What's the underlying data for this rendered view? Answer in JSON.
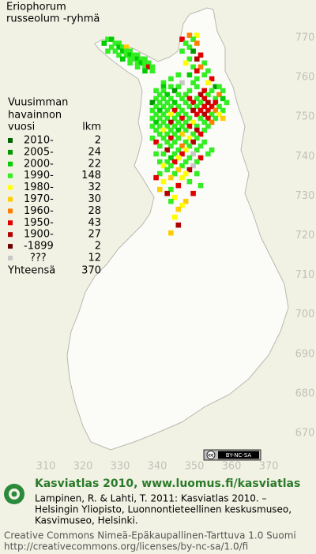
{
  "title_lines": [
    "Eriophorum",
    "russeolum -ryhmä"
  ],
  "legend_title_lines": [
    "Vuusimman",
    "havainnon",
    "vuosi"
  ],
  "legend_count_header": "lkm",
  "legend": [
    {
      "label": "2010-",
      "count": 2,
      "color": "#006400"
    },
    {
      "label": "2005-",
      "count": 24,
      "color": "#009a00"
    },
    {
      "label": "2000-",
      "count": 22,
      "color": "#00cc00"
    },
    {
      "label": "1990-",
      "count": 148,
      "color": "#33ee22"
    },
    {
      "label": "1980-",
      "count": 32,
      "color": "#ffff00"
    },
    {
      "label": "1970-",
      "count": 30,
      "color": "#ffcc00"
    },
    {
      "label": "1960-",
      "count": 28,
      "color": "#ff8000"
    },
    {
      "label": "1950-",
      "count": 43,
      "color": "#e00000"
    },
    {
      "label": "1900-",
      "count": 27,
      "color": "#b00000"
    },
    {
      "label": "-1899",
      "count": 2,
      "color": "#700000"
    },
    {
      "label": "???",
      "count": 12,
      "color": "#c8c8c8"
    }
  ],
  "total": {
    "label": "Yhteensä",
    "value": 370
  },
  "x_ticks": [
    310,
    320,
    330,
    340,
    350,
    360,
    370
  ],
  "y_ticks": [
    770,
    760,
    750,
    740,
    730,
    720,
    710,
    700,
    690,
    680,
    670
  ],
  "license_badge": {
    "symbol": "cc",
    "text": "BY-NC-SA"
  },
  "footer": {
    "heading": "Kasviatlas 2010, www.luomus.fi/kasviatlas",
    "citation_lines": [
      "Lampinen, R. & Lahti, T. 2011: Kasviatlas 2010. –",
      "Helsingin Yliopisto, Luonnontieteellinen keskusmuseo,",
      "Kasvimuseo, Helsinki."
    ],
    "license_lines": [
      "Creative Commons Nimeä-Epäkaupallinen-Tarttuva 1.0 Suomi",
      "http://creativecommons.org/licenses/by-nc-sa/1.0/fi"
    ]
  },
  "squares": [
    [
      326,
      769,
      3
    ],
    [
      327,
      769,
      2
    ],
    [
      325,
      768,
      2
    ],
    [
      328,
      768,
      3
    ],
    [
      329,
      768,
      3
    ],
    [
      327,
      767,
      3
    ],
    [
      329,
      767,
      2
    ],
    [
      330,
      767,
      3
    ],
    [
      331,
      767,
      5
    ],
    [
      326,
      766,
      3
    ],
    [
      328,
      766,
      3
    ],
    [
      330,
      766,
      2
    ],
    [
      331,
      766,
      3
    ],
    [
      332,
      766,
      3
    ],
    [
      329,
      765,
      3
    ],
    [
      331,
      765,
      3
    ],
    [
      332,
      765,
      2
    ],
    [
      333,
      765,
      3
    ],
    [
      334,
      765,
      3
    ],
    [
      330,
      764,
      2
    ],
    [
      332,
      764,
      3
    ],
    [
      333,
      764,
      3
    ],
    [
      334,
      764,
      2
    ],
    [
      335,
      764,
      3
    ],
    [
      336,
      764,
      3
    ],
    [
      332,
      763,
      3
    ],
    [
      334,
      763,
      3
    ],
    [
      335,
      763,
      2
    ],
    [
      336,
      763,
      3
    ],
    [
      337,
      763,
      3
    ],
    [
      334,
      762,
      3
    ],
    [
      336,
      762,
      3
    ],
    [
      337,
      762,
      7
    ],
    [
      338,
      762,
      3
    ],
    [
      336,
      761,
      2
    ],
    [
      338,
      761,
      3
    ],
    [
      348,
      770,
      6
    ],
    [
      350,
      770,
      4
    ],
    [
      346,
      769,
      7
    ],
    [
      349,
      769,
      3
    ],
    [
      350,
      768,
      6
    ],
    [
      347,
      768,
      3
    ],
    [
      348,
      767,
      3
    ],
    [
      349,
      766,
      1
    ],
    [
      346,
      766,
      3
    ],
    [
      351,
      765,
      7
    ],
    [
      348,
      764,
      3
    ],
    [
      350,
      764,
      8
    ],
    [
      352,
      763,
      3
    ],
    [
      347,
      763,
      4
    ],
    [
      349,
      762,
      3
    ],
    [
      351,
      762,
      6
    ],
    [
      350,
      761,
      7
    ],
    [
      353,
      761,
      3
    ],
    [
      345,
      760,
      3
    ],
    [
      348,
      760,
      2
    ],
    [
      352,
      760,
      3
    ],
    [
      343,
      759,
      3
    ],
    [
      350,
      759,
      3
    ],
    [
      354,
      759,
      7
    ],
    [
      341,
      758,
      3
    ],
    [
      346,
      758,
      10
    ],
    [
      349,
      758,
      3
    ],
    [
      353,
      758,
      4
    ],
    [
      341,
      757,
      2
    ],
    [
      343,
      757,
      3
    ],
    [
      345,
      757,
      3
    ],
    [
      350,
      757,
      3
    ],
    [
      355,
      757,
      1
    ],
    [
      356,
      757,
      3
    ],
    [
      339,
      756,
      3
    ],
    [
      341,
      756,
      3
    ],
    [
      344,
      756,
      1
    ],
    [
      348,
      756,
      3
    ],
    [
      352,
      756,
      7
    ],
    [
      354,
      756,
      3
    ],
    [
      357,
      756,
      3
    ],
    [
      340,
      755,
      3
    ],
    [
      342,
      755,
      2
    ],
    [
      345,
      755,
      3
    ],
    [
      347,
      755,
      3
    ],
    [
      351,
      755,
      8
    ],
    [
      353,
      755,
      3
    ],
    [
      356,
      755,
      6
    ],
    [
      339,
      754,
      3
    ],
    [
      341,
      754,
      3
    ],
    [
      343,
      754,
      3
    ],
    [
      346,
      754,
      3
    ],
    [
      348,
      754,
      7
    ],
    [
      350,
      754,
      3
    ],
    [
      352,
      754,
      7
    ],
    [
      355,
      754,
      3
    ],
    [
      357,
      754,
      2
    ],
    [
      338,
      753,
      1
    ],
    [
      340,
      753,
      3
    ],
    [
      342,
      753,
      3
    ],
    [
      344,
      753,
      2
    ],
    [
      347,
      753,
      3
    ],
    [
      349,
      753,
      7
    ],
    [
      351,
      753,
      3
    ],
    [
      353,
      753,
      8
    ],
    [
      355,
      753,
      7
    ],
    [
      358,
      753,
      3
    ],
    [
      339,
      752,
      3
    ],
    [
      341,
      752,
      3
    ],
    [
      343,
      752,
      3
    ],
    [
      345,
      752,
      3
    ],
    [
      348,
      752,
      3
    ],
    [
      350,
      752,
      3
    ],
    [
      352,
      752,
      7
    ],
    [
      354,
      752,
      7
    ],
    [
      356,
      752,
      3
    ],
    [
      338,
      751,
      3
    ],
    [
      340,
      751,
      2
    ],
    [
      342,
      751,
      3
    ],
    [
      344,
      751,
      7
    ],
    [
      346,
      751,
      3
    ],
    [
      349,
      751,
      8
    ],
    [
      351,
      751,
      7
    ],
    [
      353,
      751,
      7
    ],
    [
      355,
      751,
      6
    ],
    [
      357,
      751,
      3
    ],
    [
      339,
      750,
      3
    ],
    [
      341,
      750,
      3
    ],
    [
      343,
      750,
      4
    ],
    [
      345,
      750,
      3
    ],
    [
      347,
      750,
      3
    ],
    [
      350,
      750,
      7
    ],
    [
      352,
      750,
      8
    ],
    [
      354,
      750,
      3
    ],
    [
      356,
      750,
      4
    ],
    [
      338,
      749,
      3
    ],
    [
      340,
      749,
      3
    ],
    [
      342,
      749,
      3
    ],
    [
      344,
      749,
      3
    ],
    [
      346,
      749,
      7
    ],
    [
      348,
      749,
      3
    ],
    [
      351,
      749,
      3
    ],
    [
      353,
      749,
      7
    ],
    [
      355,
      749,
      3
    ],
    [
      357,
      749,
      5
    ],
    [
      339,
      748,
      2
    ],
    [
      341,
      748,
      3
    ],
    [
      343,
      748,
      8
    ],
    [
      345,
      748,
      3
    ],
    [
      347,
      748,
      3
    ],
    [
      349,
      748,
      4
    ],
    [
      352,
      748,
      3
    ],
    [
      354,
      748,
      6
    ],
    [
      338,
      747,
      3
    ],
    [
      340,
      747,
      3
    ],
    [
      342,
      747,
      3
    ],
    [
      344,
      747,
      3
    ],
    [
      346,
      747,
      3
    ],
    [
      348,
      747,
      7
    ],
    [
      350,
      747,
      3
    ],
    [
      353,
      747,
      3
    ],
    [
      339,
      746,
      3
    ],
    [
      341,
      746,
      4
    ],
    [
      343,
      746,
      3
    ],
    [
      345,
      746,
      2
    ],
    [
      347,
      746,
      3
    ],
    [
      350,
      746,
      8
    ],
    [
      352,
      746,
      3
    ],
    [
      340,
      745,
      3
    ],
    [
      342,
      745,
      3
    ],
    [
      344,
      745,
      3
    ],
    [
      346,
      745,
      5
    ],
    [
      349,
      745,
      3
    ],
    [
      351,
      745,
      7
    ],
    [
      338,
      744,
      3
    ],
    [
      341,
      744,
      3
    ],
    [
      343,
      744,
      7
    ],
    [
      345,
      744,
      3
    ],
    [
      348,
      744,
      4
    ],
    [
      350,
      744,
      3
    ],
    [
      339,
      743,
      7
    ],
    [
      342,
      743,
      3
    ],
    [
      344,
      743,
      3
    ],
    [
      347,
      743,
      3
    ],
    [
      349,
      743,
      8
    ],
    [
      352,
      743,
      3
    ],
    [
      340,
      742,
      3
    ],
    [
      343,
      742,
      3
    ],
    [
      346,
      742,
      6
    ],
    [
      348,
      742,
      3
    ],
    [
      351,
      742,
      3
    ],
    [
      342,
      741,
      8
    ],
    [
      345,
      741,
      3
    ],
    [
      347,
      741,
      4
    ],
    [
      350,
      741,
      3
    ],
    [
      354,
      741,
      3
    ],
    [
      339,
      740,
      3
    ],
    [
      341,
      740,
      3
    ],
    [
      344,
      740,
      3
    ],
    [
      346,
      740,
      7
    ],
    [
      349,
      740,
      10
    ],
    [
      353,
      740,
      3
    ],
    [
      343,
      739,
      2
    ],
    [
      345,
      739,
      4
    ],
    [
      348,
      739,
      3
    ],
    [
      351,
      739,
      7
    ],
    [
      340,
      738,
      3
    ],
    [
      342,
      738,
      3
    ],
    [
      344,
      738,
      7
    ],
    [
      347,
      738,
      3
    ],
    [
      350,
      738,
      3
    ],
    [
      341,
      737,
      4
    ],
    [
      343,
      737,
      3
    ],
    [
      346,
      737,
      3
    ],
    [
      349,
      737,
      10
    ],
    [
      342,
      736,
      3
    ],
    [
      345,
      736,
      5
    ],
    [
      348,
      736,
      8
    ],
    [
      340,
      735,
      3
    ],
    [
      344,
      735,
      3
    ],
    [
      347,
      735,
      4
    ],
    [
      350,
      735,
      3
    ],
    [
      339,
      734,
      7
    ],
    [
      343,
      734,
      5
    ],
    [
      346,
      734,
      4
    ],
    [
      341,
      733,
      4
    ],
    [
      348,
      733,
      3
    ],
    [
      345,
      732,
      7
    ],
    [
      351,
      732,
      3
    ],
    [
      340,
      731,
      5
    ],
    [
      343,
      731,
      3
    ],
    [
      342,
      730,
      8
    ],
    [
      349,
      730,
      7
    ],
    [
      344,
      729,
      4
    ],
    [
      343,
      728,
      3
    ],
    [
      347,
      728,
      5
    ],
    [
      346,
      727,
      4
    ],
    [
      345,
      726,
      5
    ],
    [
      344,
      724,
      4
    ],
    [
      345,
      722,
      8
    ],
    [
      343,
      720,
      5
    ]
  ]
}
